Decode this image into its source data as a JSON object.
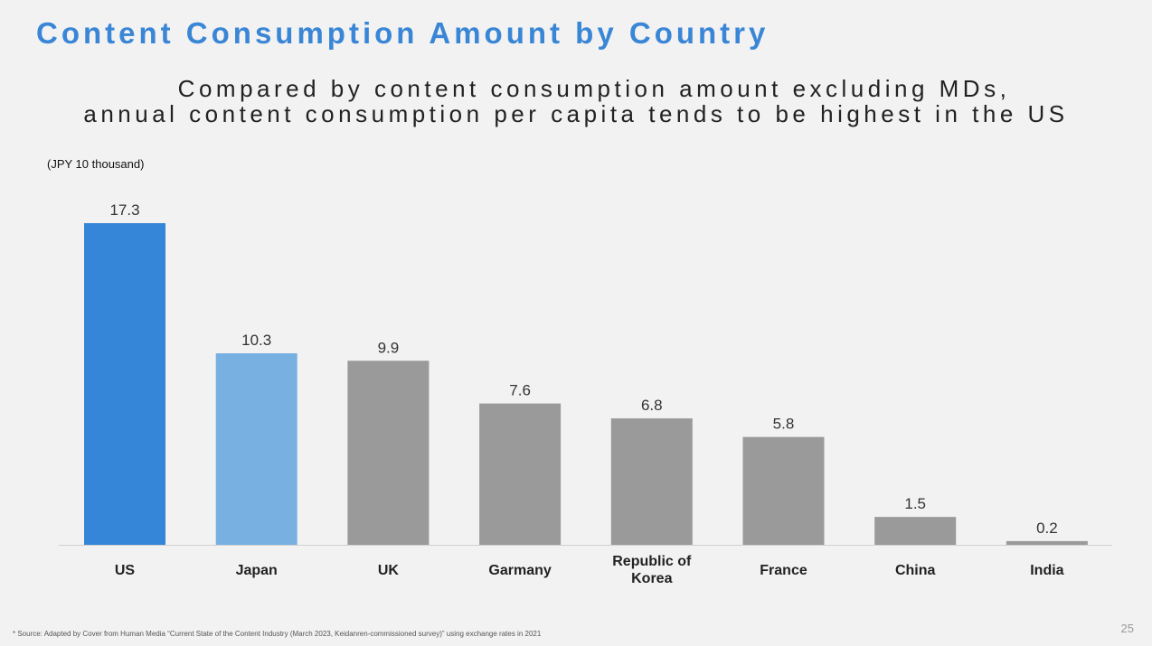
{
  "header": {
    "title": "Content Consumption Amount by Country",
    "subtitle_line1": "Compared by content consumption amount excluding MDs,",
    "subtitle_line2": "annual content consumption per capita tends to be highest in the US"
  },
  "chart_data": {
    "type": "bar",
    "ylabel": "(JPY 10 thousand)",
    "categories": [
      "US",
      "Japan",
      "UK",
      "Garmany",
      "Republic of Korea",
      "France",
      "China",
      "India"
    ],
    "category_lines": [
      [
        "US"
      ],
      [
        "Japan"
      ],
      [
        "UK"
      ],
      [
        "Garmany"
      ],
      [
        "Republic of",
        "Korea"
      ],
      [
        "France"
      ],
      [
        "China"
      ],
      [
        "India"
      ]
    ],
    "values": [
      17.3,
      10.3,
      9.9,
      7.6,
      6.8,
      5.8,
      1.5,
      0.2
    ],
    "value_labels": [
      "17.3",
      "10.3",
      "9.9",
      "7.6",
      "6.8",
      "5.8",
      "1.5",
      "0.2"
    ],
    "ylim": [
      0,
      17.3
    ],
    "grid": false,
    "bar_colors": [
      "#3585d8",
      "#78b0e2",
      "#9a9a9a",
      "#9a9a9a",
      "#9a9a9a",
      "#9a9a9a",
      "#9a9a9a",
      "#9a9a9a"
    ]
  },
  "footer": {
    "source": "* Source: Adapted by Cover from Human Media “Current State of the Content Industry (March 2023, Keidanren-commissioned survey)” using exchange rates in 2021",
    "page_number": "25"
  }
}
